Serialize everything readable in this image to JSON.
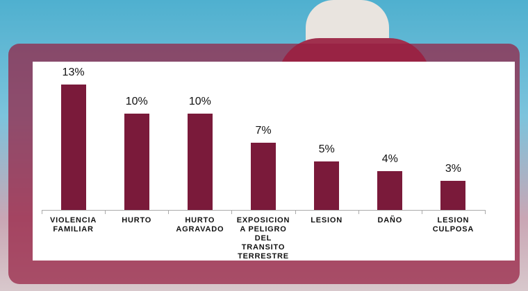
{
  "chart_data": {
    "type": "bar",
    "categories": [
      "VIOLENCIA FAMILIAR",
      "HURTO",
      "HURTO AGRAVADO",
      "EXPOSICION A PELIGRO DEL TRANSITO TERRESTRE",
      "LESION",
      "DAÑO",
      "LESION CULPOSA"
    ],
    "values": [
      13,
      10,
      10,
      7,
      5,
      4,
      3
    ],
    "value_labels": [
      "13%",
      "10%",
      "10%",
      "7%",
      "5%",
      "4%",
      "3%"
    ],
    "color": "#7a1a3a"
  }
}
